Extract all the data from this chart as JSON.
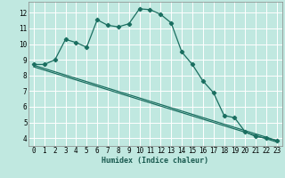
{
  "xlabel": "Humidex (Indice chaleur)",
  "background_color": "#c0e8e0",
  "grid_color": "#ffffff",
  "line_color": "#1a6e60",
  "xlim": [
    -0.5,
    23.5
  ],
  "ylim": [
    3.5,
    12.7
  ],
  "xticks": [
    0,
    1,
    2,
    3,
    4,
    5,
    6,
    7,
    8,
    9,
    10,
    11,
    12,
    13,
    14,
    15,
    16,
    17,
    18,
    19,
    20,
    21,
    22,
    23
  ],
  "yticks": [
    4,
    5,
    6,
    7,
    8,
    9,
    10,
    11,
    12
  ],
  "line1_x": [
    0,
    1,
    2,
    3,
    4,
    5,
    6,
    7,
    8,
    9,
    10,
    11,
    12,
    13,
    14,
    15,
    16,
    17,
    18,
    19,
    20,
    21,
    22,
    23
  ],
  "line1_y": [
    8.7,
    8.7,
    9.0,
    10.3,
    10.1,
    9.8,
    11.55,
    11.2,
    11.1,
    11.3,
    12.25,
    12.2,
    11.9,
    11.35,
    9.5,
    8.7,
    7.65,
    6.9,
    5.45,
    5.3,
    4.4,
    4.1,
    4.0,
    3.85
  ],
  "line2_x": [
    0,
    23
  ],
  "line2_y": [
    8.65,
    3.85
  ],
  "line3_x": [
    0,
    23
  ],
  "line3_y": [
    8.55,
    3.75
  ],
  "marker": "D",
  "marker_size": 2.2,
  "font_family": "monospace",
  "xlabel_fontsize": 6.0,
  "tick_fontsize": 5.5,
  "line_width": 0.9
}
